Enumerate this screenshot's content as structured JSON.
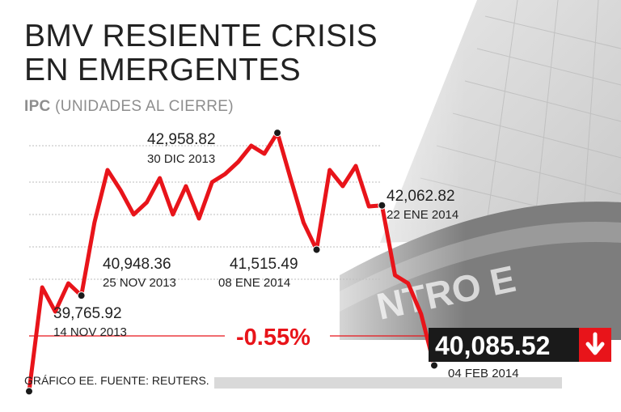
{
  "header": {
    "title_line1": "BMV RESIENTE CRISIS",
    "title_line2": "EN EMERGENTES",
    "subtitle_bold": "IPC",
    "subtitle_rest": "(UNIDADES AL CIERRE)"
  },
  "footer": {
    "source": "GRÁFICO EE. FUENTE: REUTERS."
  },
  "colors": {
    "line": "#e8141a",
    "change": "#e8141a",
    "badge_bg": "#1a1a1a",
    "badge_arrow_bg": "#e8141a"
  },
  "icons": {
    "change_direction": "arrow-down-icon"
  },
  "chart_data": {
    "type": "line",
    "title": "BMV RESIENTE CRISIS EN EMERGENTES",
    "subtitle": "IPC (UNIDADES AL CIERRE)",
    "xlabel": "",
    "ylabel": "",
    "ylim": [
      39500,
      43500
    ],
    "grid": true,
    "legend": "none",
    "values": [
      39765.92,
      41050,
      40750,
      41100,
      40948.36,
      41850,
      42500,
      42250,
      41950,
      42100,
      42400,
      41950,
      42300,
      41900,
      42350,
      42450,
      42600,
      42800,
      42700,
      42958.82,
      42400,
      41850,
      41515.49,
      42500,
      42300,
      42550,
      42050,
      42062.82,
      41200,
      41100,
      40720,
      40085.52
    ],
    "annotations": [
      {
        "value": "39,765.92",
        "date": "14 NOV 2013"
      },
      {
        "value": "40,948.36",
        "date": "25 NOV 2013"
      },
      {
        "value": "42,958.82",
        "date": "30 DIC 2013"
      },
      {
        "value": "41,515.49",
        "date": "08 ENE 2014"
      },
      {
        "value": "42,062.82",
        "date": "22 ENE 2014"
      }
    ],
    "last": {
      "value": "40,085.52",
      "date": "04 FEB 2014"
    },
    "change_label": "-0.55%"
  }
}
